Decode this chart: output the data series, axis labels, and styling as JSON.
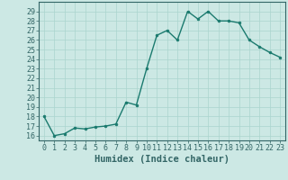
{
  "x": [
    0,
    1,
    2,
    3,
    4,
    5,
    6,
    7,
    8,
    9,
    10,
    11,
    12,
    13,
    14,
    15,
    16,
    17,
    18,
    19,
    20,
    21,
    22,
    23
  ],
  "y": [
    18,
    16,
    16.2,
    16.8,
    16.7,
    16.9,
    17,
    17.2,
    19.5,
    19.2,
    23,
    26.5,
    27,
    26,
    29,
    28.2,
    29,
    28,
    28,
    27.8,
    26,
    25.3,
    24.7,
    24.2
  ],
  "line_color": "#1a7a6e",
  "marker": "o",
  "marker_size": 2,
  "line_width": 1.0,
  "xlabel": "Humidex (Indice chaleur)",
  "xlim": [
    -0.5,
    23.5
  ],
  "ylim": [
    15.5,
    30
  ],
  "yticks": [
    16,
    17,
    18,
    19,
    20,
    21,
    22,
    23,
    24,
    25,
    26,
    27,
    28,
    29
  ],
  "xticks": [
    0,
    1,
    2,
    3,
    4,
    5,
    6,
    7,
    8,
    9,
    10,
    11,
    12,
    13,
    14,
    15,
    16,
    17,
    18,
    19,
    20,
    21,
    22,
    23
  ],
  "bg_color": "#cce8e4",
  "grid_color": "#aad4ce",
  "xlabel_fontsize": 7.5,
  "tick_fontsize": 6,
  "spine_color": "#336666"
}
